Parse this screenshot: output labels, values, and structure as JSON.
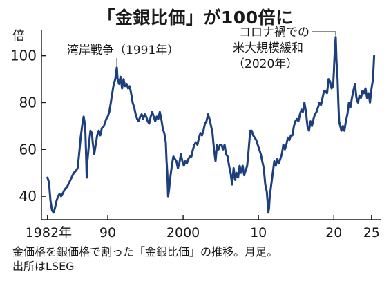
{
  "chart_data": {
    "type": "line",
    "title": "「金銀比価」が100倍に",
    "ylabel": "倍",
    "xlabel": "",
    "ylim": [
      30,
      112
    ],
    "xlim": [
      1981.2,
      2026.3
    ],
    "yticks": [
      40,
      60,
      80,
      100
    ],
    "xticks": [
      {
        "value": 1982,
        "label": "1982年"
      },
      {
        "value": 1990,
        "label": "90"
      },
      {
        "value": 2000,
        "label": "2000"
      },
      {
        "value": 2010,
        "label": "10"
      },
      {
        "value": 2020,
        "label": "20"
      },
      {
        "value": 2025,
        "label": "25"
      }
    ],
    "grid": false,
    "legend": "none",
    "series": [
      {
        "color": "#1d3f7e",
        "points": [
          [
            1982.0,
            48
          ],
          [
            1982.2,
            46
          ],
          [
            1982.4,
            38
          ],
          [
            1982.6,
            34
          ],
          [
            1982.8,
            33
          ],
          [
            1983.0,
            35
          ],
          [
            1983.2,
            38
          ],
          [
            1983.4,
            40
          ],
          [
            1983.6,
            41
          ],
          [
            1983.8,
            40
          ],
          [
            1984.0,
            41
          ],
          [
            1984.3,
            43
          ],
          [
            1984.6,
            44
          ],
          [
            1984.9,
            46
          ],
          [
            1985.2,
            48
          ],
          [
            1985.5,
            50
          ],
          [
            1985.8,
            51
          ],
          [
            1986.0,
            52
          ],
          [
            1986.2,
            58
          ],
          [
            1986.4,
            65
          ],
          [
            1986.6,
            70
          ],
          [
            1986.8,
            74
          ],
          [
            1987.0,
            70
          ],
          [
            1987.1,
            60
          ],
          [
            1987.2,
            48
          ],
          [
            1987.3,
            55
          ],
          [
            1987.5,
            62
          ],
          [
            1987.7,
            68
          ],
          [
            1987.9,
            67
          ],
          [
            1988.0,
            63
          ],
          [
            1988.2,
            58
          ],
          [
            1988.4,
            62
          ],
          [
            1988.6,
            66
          ],
          [
            1988.8,
            68
          ],
          [
            1989.0,
            66
          ],
          [
            1989.2,
            69
          ],
          [
            1989.5,
            70
          ],
          [
            1989.8,
            73
          ],
          [
            1990.0,
            74
          ],
          [
            1990.2,
            76
          ],
          [
            1990.4,
            80
          ],
          [
            1990.6,
            84
          ],
          [
            1990.8,
            88
          ],
          [
            1991.0,
            90
          ],
          [
            1991.1,
            93
          ],
          [
            1991.2,
            95
          ],
          [
            1991.3,
            90
          ],
          [
            1991.5,
            88
          ],
          [
            1991.7,
            91
          ],
          [
            1991.9,
            86
          ],
          [
            1992.1,
            90
          ],
          [
            1992.3,
            87
          ],
          [
            1992.5,
            88
          ],
          [
            1992.7,
            86
          ],
          [
            1992.9,
            87
          ],
          [
            1993.1,
            84
          ],
          [
            1993.3,
            80
          ],
          [
            1993.5,
            78
          ],
          [
            1993.7,
            75
          ],
          [
            1993.9,
            73
          ],
          [
            1994.1,
            72
          ],
          [
            1994.3,
            74
          ],
          [
            1994.5,
            75
          ],
          [
            1994.7,
            73
          ],
          [
            1994.9,
            75
          ],
          [
            1995.1,
            74
          ],
          [
            1995.3,
            72
          ],
          [
            1995.5,
            71
          ],
          [
            1995.7,
            74
          ],
          [
            1995.9,
            76
          ],
          [
            1996.1,
            74
          ],
          [
            1996.3,
            72
          ],
          [
            1996.5,
            74
          ],
          [
            1996.7,
            73
          ],
          [
            1996.9,
            76
          ],
          [
            1997.1,
            73
          ],
          [
            1997.3,
            69
          ],
          [
            1997.5,
            67
          ],
          [
            1997.7,
            63
          ],
          [
            1997.8,
            55
          ],
          [
            1997.9,
            50
          ],
          [
            1998.0,
            40
          ],
          [
            1998.1,
            42
          ],
          [
            1998.3,
            48
          ],
          [
            1998.5,
            53
          ],
          [
            1998.7,
            57
          ],
          [
            1998.9,
            56
          ],
          [
            1999.1,
            55
          ],
          [
            1999.3,
            52
          ],
          [
            1999.5,
            54
          ],
          [
            1999.7,
            58
          ],
          [
            1999.9,
            55
          ],
          [
            2000.1,
            53
          ],
          [
            2000.3,
            55
          ],
          [
            2000.5,
            54
          ],
          [
            2000.7,
            56
          ],
          [
            2000.9,
            57
          ],
          [
            2001.1,
            57
          ],
          [
            2001.3,
            60
          ],
          [
            2001.5,
            62
          ],
          [
            2001.7,
            63
          ],
          [
            2001.9,
            62
          ],
          [
            2002.1,
            65
          ],
          [
            2002.3,
            67
          ],
          [
            2002.5,
            66
          ],
          [
            2002.7,
            68
          ],
          [
            2002.9,
            71
          ],
          [
            2003.1,
            72
          ],
          [
            2003.3,
            75
          ],
          [
            2003.5,
            73
          ],
          [
            2003.7,
            70
          ],
          [
            2003.9,
            67
          ],
          [
            2004.1,
            60
          ],
          [
            2004.3,
            55
          ],
          [
            2004.5,
            62
          ],
          [
            2004.7,
            60
          ],
          [
            2004.9,
            62
          ],
          [
            2005.1,
            62
          ],
          [
            2005.3,
            60
          ],
          [
            2005.5,
            62
          ],
          [
            2005.7,
            58
          ],
          [
            2005.9,
            57
          ],
          [
            2006.1,
            53
          ],
          [
            2006.3,
            50
          ],
          [
            2006.5,
            45
          ],
          [
            2006.7,
            52
          ],
          [
            2006.9,
            47
          ],
          [
            2007.1,
            50
          ],
          [
            2007.3,
            48
          ],
          [
            2007.5,
            53
          ],
          [
            2007.7,
            50
          ],
          [
            2007.9,
            53
          ],
          [
            2008.1,
            49
          ],
          [
            2008.3,
            51
          ],
          [
            2008.5,
            53
          ],
          [
            2008.7,
            60
          ],
          [
            2008.9,
            68
          ],
          [
            2009.1,
            68
          ],
          [
            2009.3,
            66
          ],
          [
            2009.5,
            65
          ],
          [
            2009.7,
            64
          ],
          [
            2009.9,
            62
          ],
          [
            2010.1,
            60
          ],
          [
            2010.3,
            58
          ],
          [
            2010.5,
            55
          ],
          [
            2010.7,
            52
          ],
          [
            2010.9,
            45
          ],
          [
            2011.1,
            42
          ],
          [
            2011.2,
            38
          ],
          [
            2011.3,
            33
          ],
          [
            2011.4,
            35
          ],
          [
            2011.5,
            40
          ],
          [
            2011.7,
            45
          ],
          [
            2011.9,
            50
          ],
          [
            2012.1,
            55
          ],
          [
            2012.3,
            53
          ],
          [
            2012.5,
            56
          ],
          [
            2012.7,
            54
          ],
          [
            2012.9,
            56
          ],
          [
            2013.1,
            58
          ],
          [
            2013.3,
            62
          ],
          [
            2013.5,
            60
          ],
          [
            2013.7,
            62
          ],
          [
            2013.9,
            65
          ],
          [
            2014.1,
            64
          ],
          [
            2014.3,
            66
          ],
          [
            2014.5,
            66
          ],
          [
            2014.7,
            70
          ],
          [
            2014.9,
            72
          ],
          [
            2015.1,
            73
          ],
          [
            2015.3,
            72
          ],
          [
            2015.5,
            75
          ],
          [
            2015.7,
            77
          ],
          [
            2015.9,
            76
          ],
          [
            2016.1,
            80
          ],
          [
            2016.3,
            76
          ],
          [
            2016.5,
            70
          ],
          [
            2016.7,
            68
          ],
          [
            2016.9,
            72
          ],
          [
            2017.1,
            70
          ],
          [
            2017.3,
            73
          ],
          [
            2017.5,
            75
          ],
          [
            2017.7,
            76
          ],
          [
            2017.9,
            78
          ],
          [
            2018.1,
            80
          ],
          [
            2018.3,
            79
          ],
          [
            2018.5,
            82
          ],
          [
            2018.7,
            85
          ],
          [
            2018.9,
            85
          ],
          [
            2019.1,
            84
          ],
          [
            2019.3,
            90
          ],
          [
            2019.5,
            89
          ],
          [
            2019.7,
            86
          ],
          [
            2019.9,
            87
          ],
          [
            2020.0,
            93
          ],
          [
            2020.15,
            104
          ],
          [
            2020.25,
            108
          ],
          [
            2020.35,
            98
          ],
          [
            2020.5,
            90
          ],
          [
            2020.6,
            80
          ],
          [
            2020.7,
            72
          ],
          [
            2020.85,
            70
          ],
          [
            2021.0,
            68
          ],
          [
            2021.2,
            70
          ],
          [
            2021.4,
            68
          ],
          [
            2021.6,
            72
          ],
          [
            2021.8,
            75
          ],
          [
            2022.0,
            80
          ],
          [
            2022.2,
            78
          ],
          [
            2022.4,
            82
          ],
          [
            2022.6,
            85
          ],
          [
            2022.8,
            88
          ],
          [
            2023.0,
            82
          ],
          [
            2023.2,
            80
          ],
          [
            2023.4,
            83
          ],
          [
            2023.6,
            82
          ],
          [
            2023.8,
            85
          ],
          [
            2024.0,
            84
          ],
          [
            2024.2,
            86
          ],
          [
            2024.4,
            82
          ],
          [
            2024.6,
            84
          ],
          [
            2024.8,
            80
          ],
          [
            2025.0,
            86
          ],
          [
            2025.2,
            90
          ],
          [
            2025.35,
            100
          ]
        ]
      }
    ],
    "annotations": [
      {
        "text": "湾岸戦争（1991年）",
        "target": [
          1991.2,
          95
        ]
      },
      {
        "text": "コロナ禍での",
        "target": [
          2020.25,
          108
        ]
      },
      {
        "text": "米大規模緩和",
        "target": null
      },
      {
        "text": "（2020年）",
        "target": null
      }
    ]
  },
  "notes": {
    "line1": "金価格を銀価格で割った「金銀比価」の推移。月足。",
    "line2": "出所はLSEG"
  }
}
